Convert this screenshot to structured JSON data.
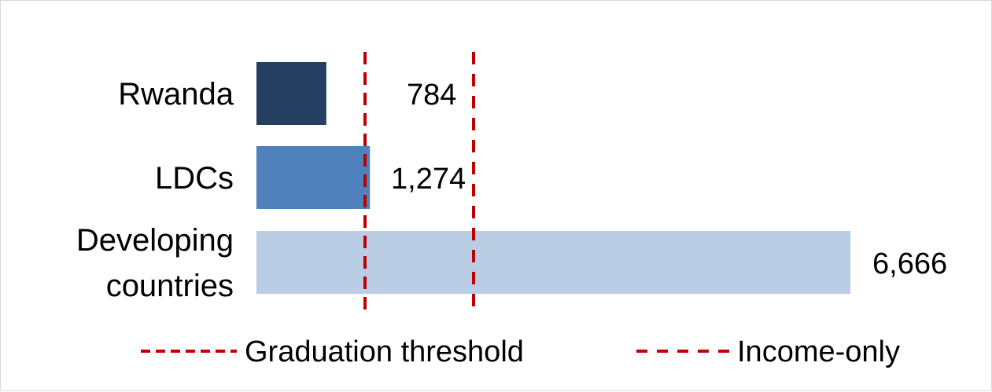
{
  "chart_data": {
    "type": "bar",
    "orientation": "horizontal",
    "categories": [
      "Rwanda",
      "LDCs",
      "Developing countries"
    ],
    "values": [
      784,
      1274,
      6666
    ],
    "value_labels": [
      "784",
      "1,274",
      "6,666"
    ],
    "bar_colors": [
      "#243f60",
      "#4f81bd",
      "#b9cde5"
    ],
    "reference_lines": [
      {
        "name": "Graduation threshold",
        "value": 1230,
        "color": "#c00000",
        "style": "dashed-short"
      },
      {
        "name": "Income-only",
        "value": 2460,
        "color": "#c00000",
        "style": "dashed-long"
      }
    ],
    "xlim": [
      0,
      6666
    ],
    "grid": false,
    "legend_position": "bottom"
  }
}
